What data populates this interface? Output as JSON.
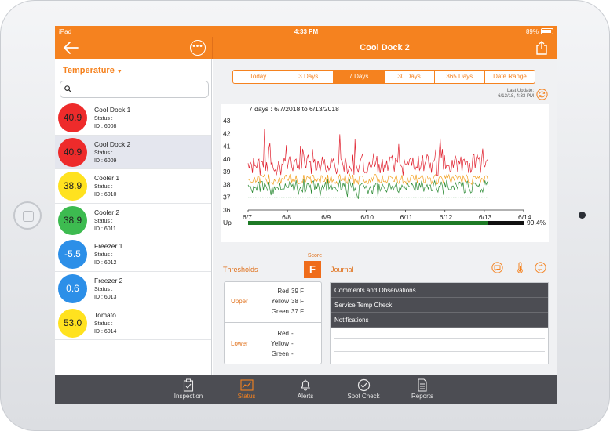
{
  "status_bar": {
    "carrier": "iPad",
    "time": "4:33 PM",
    "battery": "89%"
  },
  "nav": {
    "title": "Cool Dock 2"
  },
  "sidebar": {
    "selector_label": "Temperature",
    "search_placeholder": "",
    "sensors": [
      {
        "value": "40.9",
        "color": "#ee2b2b",
        "name": "Cool Dock 1",
        "status": "Status :",
        "id": "ID : 6008"
      },
      {
        "value": "40.9",
        "color": "#ee2b2b",
        "name": "Cool Dock 2",
        "status": "Status :",
        "id": "ID : 6009"
      },
      {
        "value": "38.9",
        "color": "#ffe21f",
        "name": "Cooler 1",
        "status": "Status :",
        "id": "ID : 6010"
      },
      {
        "value": "38.9",
        "color": "#3dbb50",
        "name": "Cooler 2",
        "status": "Status :",
        "id": "ID : 6011"
      },
      {
        "value": "-5.5",
        "color": "#2c8fe8",
        "name": "Freezer 1",
        "status": "Status :",
        "id": "ID : 6012"
      },
      {
        "value": "0.6",
        "color": "#2c8fe8",
        "name": "Freezer 2",
        "status": "Status :",
        "id": "ID : 6013"
      },
      {
        "value": "53.0",
        "color": "#ffe21f",
        "name": "Tomato",
        "status": "Status :",
        "id": "ID : 6014"
      }
    ]
  },
  "range_tabs": [
    "Today",
    "3 Days",
    "7 Days",
    "30 Days",
    "365 Days",
    "Date Range"
  ],
  "active_range": "7 Days",
  "last_update": {
    "label": "Last Update:",
    "value": "6/13/18, 4:33 PM"
  },
  "chart_data": {
    "type": "line",
    "title": "7 days : 6/7/2018 to 6/13/2018",
    "x_ticks": [
      "6/7",
      "6/8",
      "6/9",
      "6/10",
      "6/11",
      "6/12",
      "6/13",
      "6/14"
    ],
    "y_ticks": [
      43,
      42,
      41,
      40,
      39,
      38,
      37,
      36
    ],
    "ylim": [
      36,
      43
    ],
    "series": [],
    "threshold_line": 37.0,
    "uptime": {
      "label": "Up",
      "value": "99.4%"
    }
  },
  "thresholds": {
    "title": "Thresholds",
    "score_label": "Score",
    "score": "F",
    "upper": {
      "heading": "Upper",
      "rows": [
        {
          "label": "Red",
          "value": "39 F"
        },
        {
          "label": "Yellow",
          "value": "38 F"
        },
        {
          "label": "Green",
          "value": "37 F"
        }
      ]
    },
    "lower": {
      "heading": "Lower",
      "rows": [
        {
          "label": "Red",
          "value": "-"
        },
        {
          "label": "Yellow",
          "value": "-"
        },
        {
          "label": "Green",
          "value": "-"
        }
      ]
    }
  },
  "journal": {
    "title": "Journal",
    "items": [
      "Comments and Observations",
      "Service Temp Check",
      "Notifications"
    ]
  },
  "tabbar": {
    "active": "Status",
    "tabs": [
      {
        "label": "Inspection",
        "icon": "clipboard-icon"
      },
      {
        "label": "Status",
        "icon": "chart-icon"
      },
      {
        "label": "Alerts",
        "icon": "bell-icon"
      },
      {
        "label": "Spot Check",
        "icon": "checkmark-circle-icon"
      },
      {
        "label": "Reports",
        "icon": "document-icon"
      }
    ]
  },
  "colors": {
    "accent": "#f5821f",
    "tabbar_bg": "#4c4d53",
    "line_red": "#e0202e",
    "line_orange": "#f2a01f",
    "line_green": "#2a8a33"
  }
}
